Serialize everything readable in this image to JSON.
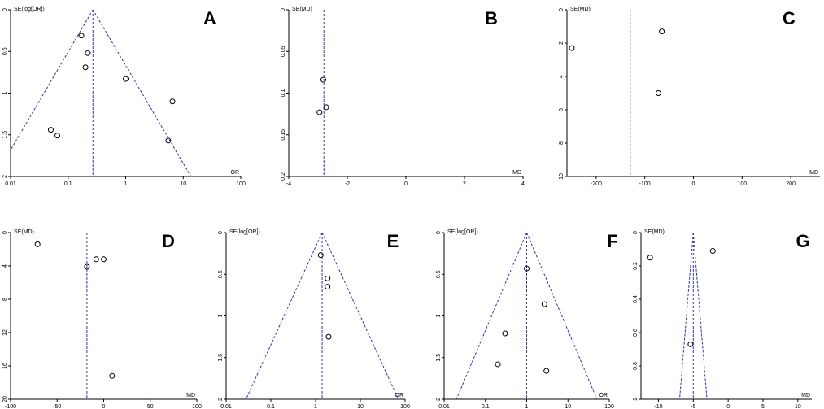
{
  "chart_data": [
    {
      "id": "A",
      "type": "scatter",
      "letter": "A",
      "xlabel": "OR",
      "ylabel": "SE(log[OR])",
      "x_scale": "log",
      "xlim": [
        0.01,
        100
      ],
      "ylim": [
        0,
        2
      ],
      "y_inverted": true,
      "x_ticks": [
        0.01,
        0.1,
        1,
        10,
        100
      ],
      "x_tick_labels": [
        "0.01",
        "0.1",
        "1",
        "10",
        "100"
      ],
      "y_ticks": [
        0,
        0.5,
        1,
        1.5,
        2
      ],
      "y_tick_labels": [
        "0",
        "0.5",
        "1",
        "1.5",
        "2"
      ],
      "pooled": 0.27,
      "funnel": true,
      "points": [
        {
          "x": 0.17,
          "y": 0.31
        },
        {
          "x": 0.22,
          "y": 0.52
        },
        {
          "x": 0.2,
          "y": 0.69
        },
        {
          "x": 1.0,
          "y": 0.83
        },
        {
          "x": 6.5,
          "y": 1.1
        },
        {
          "x": 0.05,
          "y": 1.44
        },
        {
          "x": 0.065,
          "y": 1.51
        },
        {
          "x": 5.5,
          "y": 1.57
        }
      ]
    },
    {
      "id": "B",
      "type": "scatter",
      "letter": "B",
      "xlabel": "MD",
      "ylabel": "SE(MD)",
      "x_scale": "linear",
      "xlim": [
        -4,
        4
      ],
      "ylim": [
        0,
        0.2
      ],
      "y_inverted": true,
      "x_ticks": [
        -4,
        -2,
        0,
        2,
        4
      ],
      "x_tick_labels": [
        "-4",
        "-2",
        "0",
        "2",
        "4"
      ],
      "y_ticks": [
        0,
        0.05,
        0.1,
        0.15,
        0.2
      ],
      "y_tick_labels": [
        "0",
        "0.05",
        "0.1",
        "0.15",
        "0.2"
      ],
      "pooled": -2.8,
      "funnel": false,
      "points": [
        {
          "x": -2.82,
          "y": 0.084
        },
        {
          "x": -2.72,
          "y": 0.117
        },
        {
          "x": -2.95,
          "y": 0.123
        }
      ]
    },
    {
      "id": "C",
      "type": "scatter",
      "letter": "C",
      "xlabel": "MD",
      "ylabel": "SE(MD)",
      "x_scale": "linear",
      "xlim": [
        -260,
        260
      ],
      "ylim": [
        0,
        10
      ],
      "y_inverted": true,
      "x_ticks": [
        -200,
        -100,
        0,
        100,
        200
      ],
      "x_tick_labels": [
        "-200",
        "-100",
        "0",
        "100",
        "200"
      ],
      "y_ticks": [
        0,
        2,
        4,
        6,
        8,
        10
      ],
      "y_tick_labels": [
        "0",
        "2",
        "4",
        "6",
        "8",
        "10"
      ],
      "pooled": -130,
      "funnel": false,
      "points": [
        {
          "x": -65,
          "y": 1.3
        },
        {
          "x": -250,
          "y": 2.3
        },
        {
          "x": -72,
          "y": 5.0
        }
      ]
    },
    {
      "id": "D",
      "type": "scatter",
      "letter": "D",
      "xlabel": "MD",
      "ylabel": "SE(MD)",
      "x_scale": "linear",
      "xlim": [
        -100,
        100
      ],
      "ylim": [
        0,
        20
      ],
      "y_inverted": true,
      "x_ticks": [
        -100,
        -50,
        0,
        50,
        100
      ],
      "x_tick_labels": [
        "-100",
        "-50",
        "0",
        "50",
        "100"
      ],
      "y_ticks": [
        0,
        4,
        8,
        12,
        16,
        20
      ],
      "y_tick_labels": [
        "0",
        "4",
        "8",
        "12",
        "16",
        "20"
      ],
      "pooled": -18,
      "funnel": false,
      "points": [
        {
          "x": -71,
          "y": 1.4
        },
        {
          "x": -8,
          "y": 3.2
        },
        {
          "x": 0,
          "y": 3.2
        },
        {
          "x": -18,
          "y": 4.1
        },
        {
          "x": 9,
          "y": 17.2
        }
      ]
    },
    {
      "id": "E",
      "type": "scatter",
      "letter": "E",
      "xlabel": "OR",
      "ylabel": "SE(log[OR])",
      "x_scale": "log",
      "xlim": [
        0.01,
        100
      ],
      "ylim": [
        0,
        2
      ],
      "y_inverted": true,
      "x_ticks": [
        0.01,
        0.1,
        1,
        10,
        100
      ],
      "x_tick_labels": [
        "0.01",
        "0.1",
        "1",
        "10",
        "100"
      ],
      "y_ticks": [
        0,
        0.5,
        1,
        1.5,
        2
      ],
      "y_tick_labels": [
        "0",
        "0.5",
        "1",
        "1.5",
        "2"
      ],
      "pooled": 1.4,
      "funnel": true,
      "points": [
        {
          "x": 1.3,
          "y": 0.27
        },
        {
          "x": 1.85,
          "y": 0.55
        },
        {
          "x": 1.85,
          "y": 0.65
        },
        {
          "x": 1.95,
          "y": 1.25
        }
      ]
    },
    {
      "id": "F",
      "type": "scatter",
      "letter": "F",
      "xlabel": "OR",
      "ylabel": "SE(log[OR])",
      "x_scale": "log",
      "xlim": [
        0.01,
        100
      ],
      "ylim": [
        0,
        2
      ],
      "y_inverted": true,
      "x_ticks": [
        0.01,
        0.1,
        1,
        10,
        100
      ],
      "x_tick_labels": [
        "0.01",
        "0.1",
        "1",
        "10",
        "100"
      ],
      "y_ticks": [
        0,
        0.5,
        1,
        1.5,
        2
      ],
      "y_tick_labels": [
        "0",
        "0.5",
        "1",
        "1.5",
        "2"
      ],
      "pooled": 1.0,
      "funnel": true,
      "points": [
        {
          "x": 1.0,
          "y": 0.43
        },
        {
          "x": 2.7,
          "y": 0.86
        },
        {
          "x": 0.3,
          "y": 1.21
        },
        {
          "x": 0.2,
          "y": 1.58
        },
        {
          "x": 3.0,
          "y": 1.66
        }
      ]
    },
    {
      "id": "G",
      "type": "scatter",
      "letter": "G",
      "xlabel": "MD",
      "ylabel": "SE(MD)",
      "x_scale": "linear",
      "xlim": [
        -12.5,
        12
      ],
      "ylim": [
        0,
        1
      ],
      "y_inverted": true,
      "x_ticks": [
        -10,
        -5,
        0,
        5,
        10
      ],
      "x_tick_labels": [
        "-10",
        "-5",
        "0",
        "5",
        "10"
      ],
      "y_ticks": [
        0,
        0.2,
        0.4,
        0.6,
        0.8,
        1
      ],
      "y_tick_labels": [
        "0",
        "0.2",
        "0.4",
        "0.6",
        "0.8",
        "1"
      ],
      "pooled": -5,
      "funnel": true,
      "funnel_se": true,
      "points": [
        {
          "x": -11.2,
          "y": 0.15
        },
        {
          "x": -2.2,
          "y": 0.11
        },
        {
          "x": -5.4,
          "y": 0.67
        }
      ]
    }
  ],
  "colors": {
    "reference_line": "#3333aa",
    "axis": "#000000",
    "marker": "#000000"
  }
}
